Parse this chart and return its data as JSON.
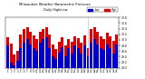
{
  "title": "Milwaukee Weather Barometric Pressure",
  "subtitle": "Daily High/Low",
  "ylim": [
    29.0,
    30.8
  ],
  "ytick_labels": [
    "29.0",
    "29.2",
    "29.4",
    "29.6",
    "29.8",
    "30.0",
    "30.2",
    "30.4",
    "30.6",
    "30.8"
  ],
  "ytick_vals": [
    29.0,
    29.2,
    29.4,
    29.6,
    29.8,
    30.0,
    30.2,
    30.4,
    30.6,
    30.8
  ],
  "background_color": "#ffffff",
  "high_color": "#dd0000",
  "low_color": "#0000cc",
  "dotted_line_x": 25,
  "highs": [
    30.1,
    29.88,
    29.48,
    29.6,
    30.2,
    30.38,
    30.44,
    30.3,
    30.16,
    30.02,
    30.3,
    30.38,
    30.46,
    30.2,
    29.82,
    29.68,
    29.92,
    30.1,
    29.8,
    30.02,
    29.92,
    30.14,
    30.06,
    29.9,
    30.16,
    29.72,
    30.38,
    30.44,
    30.3,
    30.14,
    30.02,
    30.24,
    30.12,
    29.96,
    30.2
  ],
  "lows": [
    29.8,
    29.2,
    29.1,
    29.25,
    29.7,
    29.9,
    30.02,
    29.82,
    29.7,
    29.6,
    29.9,
    30.02,
    30.1,
    29.72,
    29.4,
    29.32,
    29.55,
    29.75,
    29.42,
    29.7,
    29.52,
    29.8,
    29.7,
    29.52,
    29.8,
    29.4,
    29.9,
    30.02,
    29.85,
    29.7,
    29.65,
    29.85,
    29.72,
    29.52,
    29.82
  ],
  "xlabels": [
    "1",
    "2",
    "3",
    "4",
    "5",
    "6",
    "7",
    "8",
    "9",
    "10",
    "11",
    "12",
    "13",
    "14",
    "15",
    "16",
    "17",
    "18",
    "19",
    "20",
    "21",
    "22",
    "23",
    "24",
    "25",
    "26",
    "27",
    "28",
    "29",
    "30",
    "31",
    "32",
    "33",
    "34",
    "35"
  ]
}
